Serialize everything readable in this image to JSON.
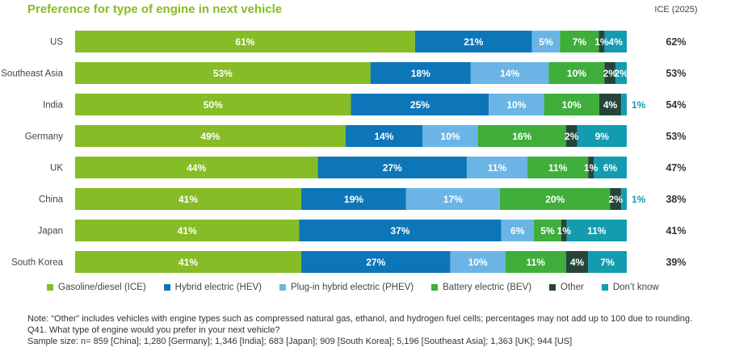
{
  "title": "Preference for type of engine in next vehicle",
  "ice_column_header": "ICE (2025)",
  "colors": {
    "ice": "#86BC25",
    "hev": "#0D76B8",
    "phev": "#6BB5E6",
    "bev": "#3FAE3B",
    "other": "#26453A",
    "dont_know": "#139CB0",
    "outside_label": "#139CB0"
  },
  "chart_data": {
    "type": "bar",
    "orientation": "horizontal",
    "stacked": true,
    "categories": [
      "US",
      "Southeast Asia",
      "India",
      "Germany",
      "UK",
      "China",
      "Japan",
      "South Korea"
    ],
    "series": [
      {
        "name": "Gasoline/diesel (ICE)",
        "key": "ice",
        "values": [
          61,
          53,
          50,
          49,
          44,
          41,
          41,
          41
        ]
      },
      {
        "name": "Hybrid electric (HEV)",
        "key": "hev",
        "values": [
          21,
          18,
          25,
          14,
          27,
          19,
          37,
          27
        ]
      },
      {
        "name": "Plug-in hybrid electric (PHEV)",
        "key": "phev",
        "values": [
          5,
          14,
          10,
          10,
          11,
          17,
          6,
          10
        ]
      },
      {
        "name": "Battery electric (BEV)",
        "key": "bev",
        "values": [
          7,
          10,
          10,
          16,
          11,
          20,
          5,
          11
        ]
      },
      {
        "name": "Other",
        "key": "other",
        "values": [
          1,
          2,
          4,
          2,
          1,
          2,
          1,
          4
        ]
      },
      {
        "name": "Don't know",
        "key": "dont_know",
        "values": [
          4,
          2,
          1,
          9,
          6,
          1,
          11,
          7
        ]
      }
    ],
    "ice_2025": [
      62,
      53,
      54,
      53,
      47,
      38,
      41,
      39
    ],
    "ice_2025_labels": [
      "62%",
      "53%",
      "54%",
      "53%",
      "47%",
      "38%",
      "41%",
      "39%"
    ],
    "legend_position": "bottom",
    "grid": false
  },
  "legend": [
    {
      "label": "Gasoline/diesel (ICE)",
      "color": "#86BC25"
    },
    {
      "label": "Hybrid electric (HEV)",
      "color": "#0D76B8"
    },
    {
      "label": "Plug-in hybrid electric (PHEV)",
      "color": "#6BB5E6"
    },
    {
      "label": "Battery electric (BEV)",
      "color": "#3FAE3B"
    },
    {
      "label": "Other",
      "color": "#26453A"
    },
    {
      "label": "Don’t know",
      "color": "#139CB0"
    }
  ],
  "notes": {
    "note": "Note: “Other” includes vehicles with engine types such as compressed natural gas, ethanol, and hydrogen fuel cells; percentages may not add up to 100 due to rounding.",
    "question": "Q41. What type of engine would you prefer in your next vehicle?",
    "sample": "Sample size: n= 859 [China]; 1,280 [Germany]; 1,346 [India]; 683 [Japan]; 909 [South Korea]; 5,196 [Southeast Asia]; 1,363 [UK]; 944 [US]"
  }
}
